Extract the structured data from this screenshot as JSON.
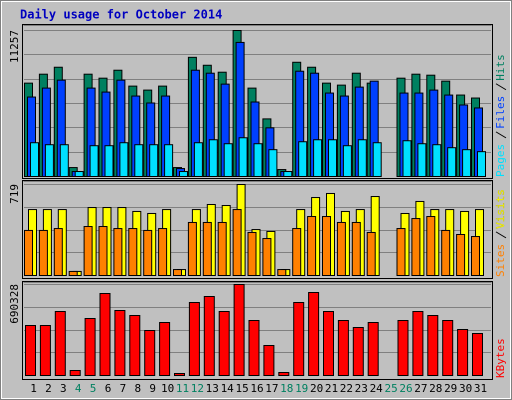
{
  "chart_data": [
    {
      "type": "bar",
      "title": "Daily usage for October 2014",
      "categories": [
        "1",
        "2",
        "3",
        "4",
        "5",
        "6",
        "7",
        "8",
        "9",
        "10",
        "11",
        "12",
        "13",
        "14",
        "15",
        "16",
        "17",
        "18",
        "19",
        "20",
        "21",
        "22",
        "23",
        "24",
        "25",
        "26",
        "27",
        "28",
        "29",
        "30",
        "31"
      ],
      "category_colors": [
        "#000000",
        "#000000",
        "#000000",
        "#008060",
        "#008060",
        "#000000",
        "#000000",
        "#000000",
        "#000000",
        "#000000",
        "#008060",
        "#008060",
        "#000000",
        "#000000",
        "#000000",
        "#000000",
        "#000000",
        "#008060",
        "#008060",
        "#000000",
        "#000000",
        "#000000",
        "#000000",
        "#000000",
        "#008060",
        "#008060",
        "#000000",
        "#000000",
        "#000000",
        "#000000",
        "#000000"
      ],
      "ylim": [
        0,
        11257
      ],
      "yticks": [
        11257
      ],
      "series": [
        {
          "name": "Hits",
          "color": "#008060",
          "values": [
            7198,
            7888,
            8424,
            689,
            7888,
            7581,
            8194,
            6969,
            6662,
            6969,
            689,
            9189,
            8577,
            8041,
            11257,
            6815,
            4442,
            536,
            8807,
            8424,
            7198,
            7045,
            7964,
            7198,
            0,
            7581,
            7888,
            7811,
            7352,
            6280,
            6050
          ]
        },
        {
          "name": "Files",
          "color": "#0040ff",
          "values": [
            6126,
            6816,
            7428,
            383,
            6816,
            6509,
            7428,
            6203,
            5667,
            6203,
            613,
            8194,
            7964,
            7122,
            10338,
            5743,
            3752,
            383,
            8117,
            7964,
            6433,
            6203,
            6892,
            7352,
            0,
            6433,
            6433,
            6662,
            6279,
            5514,
            5284
          ]
        },
        {
          "name": "Pages",
          "color": "#00e0ff",
          "values": [
            2604,
            2451,
            2451,
            383,
            2374,
            2374,
            2604,
            2451,
            2451,
            2451,
            383,
            2604,
            2833,
            2527,
            2987,
            2527,
            2068,
            383,
            2680,
            2833,
            2833,
            2374,
            2833,
            2604,
            0,
            2757,
            2527,
            2451,
            2221,
            2068,
            1915
          ]
        }
      ]
    },
    {
      "type": "bar",
      "ylim": [
        0,
        719
      ],
      "yticks": [
        719
      ],
      "series": [
        {
          "name": "Visits",
          "color": "#ffff00",
          "values": [
            521,
            521,
            521,
            32,
            537,
            537,
            537,
            506,
            490,
            521,
            47,
            521,
            561,
            553,
            719,
            363,
            348,
            47,
            521,
            616,
            648,
            506,
            521,
            624,
            0,
            490,
            585,
            521,
            521,
            506,
            521
          ]
        },
        {
          "name": "Sites",
          "color": "#ff8000",
          "values": [
            356,
            356,
            371,
            32,
            387,
            387,
            371,
            371,
            356,
            371,
            47,
            419,
            419,
            419,
            521,
            340,
            292,
            47,
            371,
            466,
            466,
            419,
            419,
            340,
            0,
            371,
            450,
            466,
            356,
            324,
            308
          ]
        }
      ]
    },
    {
      "type": "bar",
      "ylim": [
        0,
        690328
      ],
      "yticks": [
        690328
      ],
      "series": [
        {
          "name": "KBytes",
          "color": "#ff0000",
          "values": [
            379300,
            379300,
            485504,
            37930,
            432402,
            622052,
            493090,
            455160,
            341370,
            402058,
            15172,
            553778,
            599294,
            485504,
            690328,
            417230,
            227580,
            22758,
            553778,
            629638,
            485504,
            417230,
            364128,
            402058,
            0,
            417230,
            485504,
            455160,
            417230,
            348956,
            318612
          ]
        }
      ]
    }
  ]
}
